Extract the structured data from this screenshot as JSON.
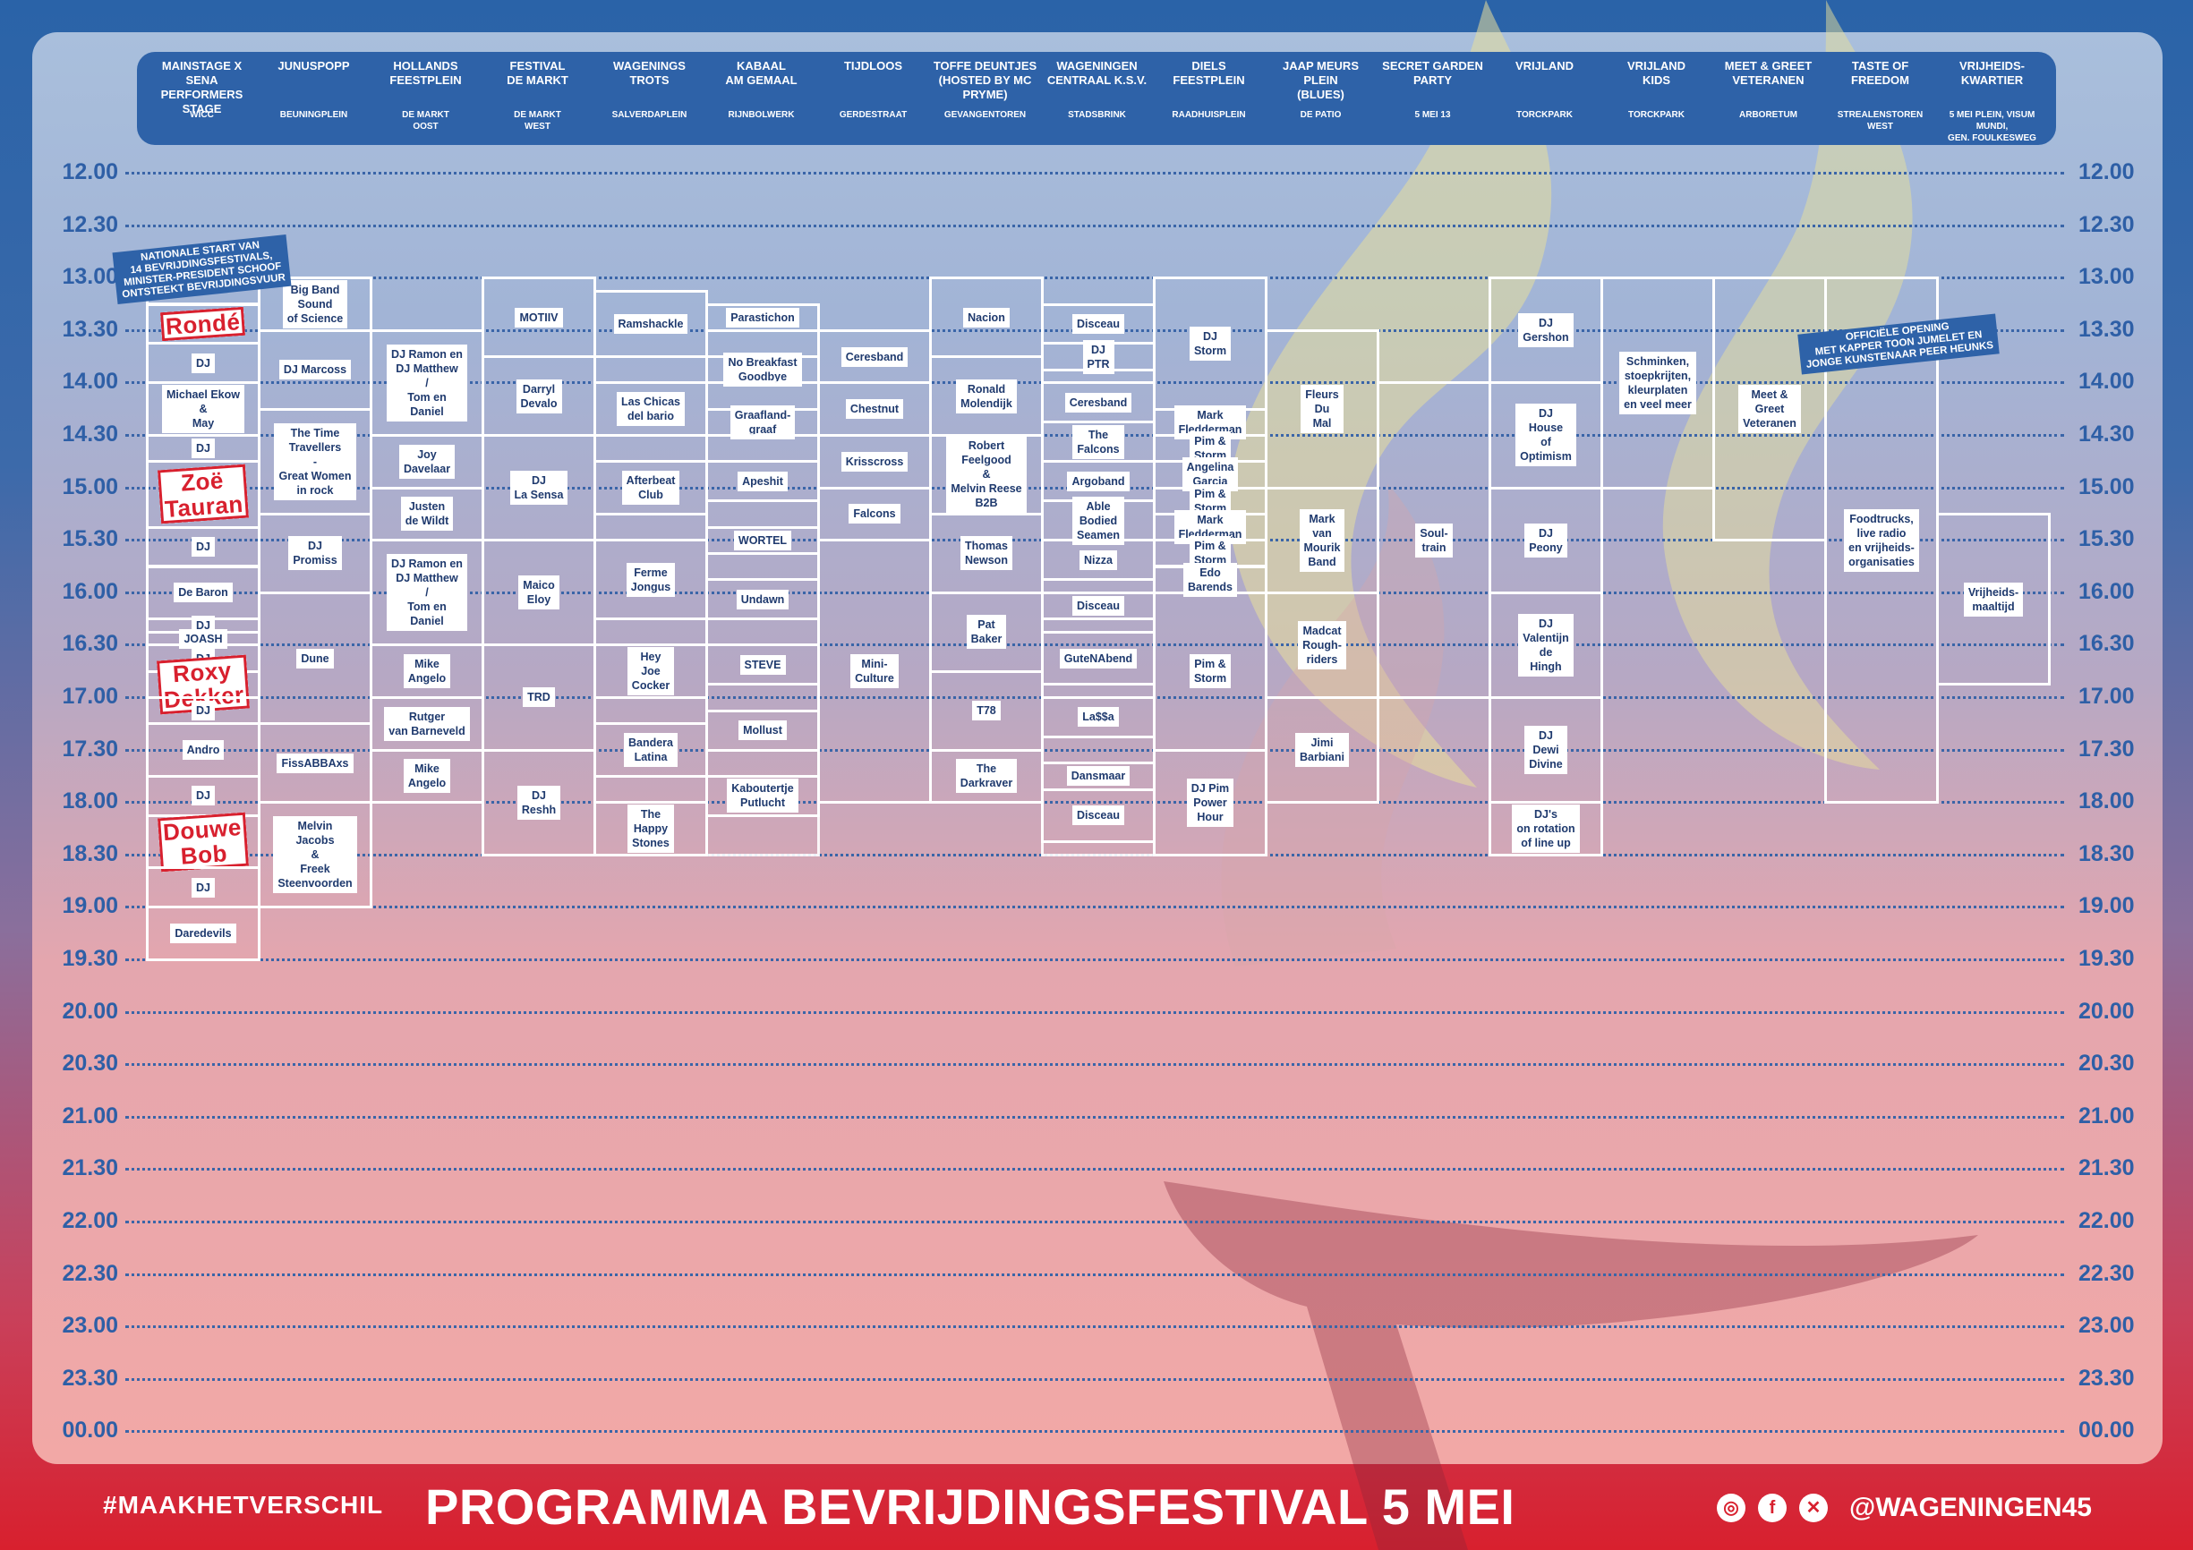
{
  "title": "PROGRAMMA BEVRIJDINGSFESTIVAL 5 MEI",
  "hashtag": "#MAAKHETVERSCHIL",
  "social": {
    "handle": "@WAGENINGEN45",
    "icons": [
      "instagram-icon",
      "facebook-icon",
      "x-icon"
    ]
  },
  "colors": {
    "blue": "#2e62a8",
    "red": "#d8202e",
    "white": "#ffffff"
  },
  "times": [
    "12.00",
    "12.30",
    "13.00",
    "13.30",
    "14.00",
    "14.30",
    "15.00",
    "15.30",
    "16.00",
    "16.30",
    "17.00",
    "17.30",
    "18.00",
    "18.30",
    "19.00",
    "19.30",
    "20.00",
    "20.30",
    "21.00",
    "21.30",
    "22.00",
    "22.30",
    "23.00",
    "23.30",
    "00.00"
  ],
  "stages": [
    {
      "name": "MAINSTAGE X SENA\nPERFORMERS STAGE",
      "location": "WICC",
      "slots": [
        {
          "s": 2,
          "e": 2.5,
          "act": ""
        },
        {
          "s": 2.5,
          "e": 3.25,
          "act": "Rondé",
          "headliner": true
        },
        {
          "s": 3.25,
          "e": 4,
          "act": "DJ"
        },
        {
          "s": 4,
          "e": 5,
          "act": "Michael Ekow\n&\nMay"
        },
        {
          "s": 5,
          "e": 5.5,
          "act": "DJ"
        },
        {
          "s": 5.5,
          "e": 6.75,
          "act": "Zoë\nTauran",
          "headliner": true
        },
        {
          "s": 6.75,
          "e": 7.5,
          "act": "DJ"
        },
        {
          "s": 7.5,
          "e": 8.5,
          "act": "De Baron"
        },
        {
          "s": 8.5,
          "e": 8.75,
          "act": "DJ"
        },
        {
          "s": 8.75,
          "e": 9,
          "act": "JOASH"
        },
        {
          "s": 9,
          "e": 9.5,
          "act": "DJ"
        },
        {
          "s": 9.5,
          "e": 10,
          "act": "Roxy\nDekker",
          "headliner": true
        },
        {
          "s": 10,
          "e": 10.5,
          "act": "DJ"
        },
        {
          "s": 10.5,
          "e": 11.5,
          "act": "Andro"
        },
        {
          "s": 11.5,
          "e": 12.25,
          "act": "DJ"
        },
        {
          "s": 12.25,
          "e": 13.25,
          "act": "Douwe\nBob",
          "headliner": true
        },
        {
          "s": 13.25,
          "e": 14,
          "act": "DJ"
        },
        {
          "s": 14,
          "e": 15,
          "act": "Daredevils"
        }
      ]
    },
    {
      "name": "JUNUSPOPP",
      "location": "BEUNINGPLEIN",
      "slots": [
        {
          "s": 2,
          "e": 3,
          "act": "Big Band\nSound\nof Science"
        },
        {
          "s": 3,
          "e": 4.5,
          "act": "DJ Marcoss"
        },
        {
          "s": 4.5,
          "e": 6.5,
          "act": "The Time\nTravellers\n-\nGreat Women\nin rock"
        },
        {
          "s": 6.5,
          "e": 8,
          "act": "DJ\nPromiss"
        },
        {
          "s": 8,
          "e": 10.5,
          "act": "Dune"
        },
        {
          "s": 10.5,
          "e": 12,
          "act": "FissABBAxs"
        },
        {
          "s": 12,
          "e": 14,
          "act": "Melvin\nJacobs\n&\nFreek\nSteenvoorden"
        }
      ]
    },
    {
      "name": "HOLLANDS\nFEESTPLEIN",
      "location": "DE MARKT\nOOST",
      "slots": [
        {
          "s": 3,
          "e": 5,
          "act": "DJ Ramon en\nDJ Matthew\n/\nTom en\nDaniel"
        },
        {
          "s": 5,
          "e": 6,
          "act": "Joy\nDavelaar"
        },
        {
          "s": 6,
          "e": 7,
          "act": "Justen\nde Wildt"
        },
        {
          "s": 7,
          "e": 9,
          "act": "DJ Ramon en\nDJ Matthew\n/\nTom en\nDaniel"
        },
        {
          "s": 9,
          "e": 10,
          "act": "Mike\nAngelo"
        },
        {
          "s": 10,
          "e": 11,
          "act": "Rutger\nvan Barneveld"
        },
        {
          "s": 11,
          "e": 12,
          "act": "Mike\nAngelo"
        }
      ]
    },
    {
      "name": "FESTIVAL\nDE MARKT",
      "location": "DE MARKT\nWEST",
      "slots": [
        {
          "s": 2,
          "e": 3.5,
          "act": "MOTIIV"
        },
        {
          "s": 3.5,
          "e": 5,
          "act": "Darryl\nDevalo"
        },
        {
          "s": 5,
          "e": 7,
          "act": "DJ\nLa Sensa"
        },
        {
          "s": 7,
          "e": 9,
          "act": "Maico\nEloy"
        },
        {
          "s": 9,
          "e": 11,
          "act": "TRD"
        },
        {
          "s": 11,
          "e": 13,
          "act": "DJ\nReshh"
        }
      ]
    },
    {
      "name": "WAGENINGS\nTROTS",
      "location": "SALVERDAPLEIN",
      "slots": [
        {
          "s": 2.25,
          "e": 3.5,
          "act": "Ramshackle"
        },
        {
          "s": 3.5,
          "e": 4,
          "act": ""
        },
        {
          "s": 4,
          "e": 5,
          "act": "Las Chicas\ndel bario"
        },
        {
          "s": 5,
          "e": 5.5,
          "act": ""
        },
        {
          "s": 5.5,
          "e": 6.5,
          "act": "Afterbeat\nClub"
        },
        {
          "s": 6.5,
          "e": 7,
          "act": ""
        },
        {
          "s": 7,
          "e": 8.5,
          "act": "Ferme\nJongus"
        },
        {
          "s": 8.5,
          "e": 9,
          "act": ""
        },
        {
          "s": 9,
          "e": 10,
          "act": "Hey\nJoe\nCocker"
        },
        {
          "s": 10,
          "e": 10.5,
          "act": ""
        },
        {
          "s": 10.5,
          "e": 11.5,
          "act": "Bandera\nLatina"
        },
        {
          "s": 11.5,
          "e": 12,
          "act": ""
        },
        {
          "s": 12,
          "e": 13,
          "act": "The\nHappy\nStones"
        }
      ]
    },
    {
      "name": "KABAAL\nAM GEMAAL",
      "location": "RIJNBOLWERK",
      "slots": [
        {
          "s": 2.5,
          "e": 3,
          "act": "Parastichon"
        },
        {
          "s": 3,
          "e": 3.5,
          "act": ""
        },
        {
          "s": 3.5,
          "e": 4,
          "act": "No Breakfast\nGoodbye"
        },
        {
          "s": 4,
          "e": 4.5,
          "act": ""
        },
        {
          "s": 4.5,
          "e": 5,
          "act": "Graafland-\ngraaf"
        },
        {
          "s": 5,
          "e": 5.5,
          "act": ""
        },
        {
          "s": 5.5,
          "e": 6.25,
          "act": "Apeshit"
        },
        {
          "s": 6.25,
          "e": 6.75,
          "act": ""
        },
        {
          "s": 6.75,
          "e": 7.25,
          "act": "WORTEL"
        },
        {
          "s": 7.25,
          "e": 7.75,
          "act": ""
        },
        {
          "s": 7.75,
          "e": 8.5,
          "act": "Undawn"
        },
        {
          "s": 8.5,
          "e": 9,
          "act": ""
        },
        {
          "s": 9,
          "e": 9.75,
          "act": "STEVE"
        },
        {
          "s": 9.75,
          "e": 10.25,
          "act": ""
        },
        {
          "s": 10.25,
          "e": 11,
          "act": "Mollust"
        },
        {
          "s": 11,
          "e": 11.5,
          "act": ""
        },
        {
          "s": 11.5,
          "e": 12.25,
          "act": "Kaboutertje\nPutlucht"
        },
        {
          "s": 12.25,
          "e": 13,
          "act": ""
        }
      ]
    },
    {
      "name": "TIJDLOOS",
      "location": "GERDESTRAAT",
      "slots": [
        {
          "s": 3,
          "e": 4,
          "act": "Ceresband"
        },
        {
          "s": 4,
          "e": 5,
          "act": "Chestnut"
        },
        {
          "s": 5,
          "e": 6,
          "act": "Krisscross"
        },
        {
          "s": 6,
          "e": 7,
          "act": "Falcons"
        },
        {
          "s": 7,
          "e": 12,
          "act": "Mini-\nCulture"
        }
      ]
    },
    {
      "name": "TOFFE DEUNTJES\n(HOSTED BY MC PRYME)",
      "location": "GEVANGENTOREN",
      "slots": [
        {
          "s": 2,
          "e": 3.5,
          "act": "Nacion"
        },
        {
          "s": 3.5,
          "e": 5,
          "act": "Ronald\nMolendijk"
        },
        {
          "s": 5,
          "e": 6.5,
          "act": "Robert\nFeelgood\n&\nMelvin Reese\nB2B"
        },
        {
          "s": 6.5,
          "e": 8,
          "act": "Thomas\nNewson"
        },
        {
          "s": 8,
          "e": 9.5,
          "act": "Pat\nBaker"
        },
        {
          "s": 9.5,
          "e": 11,
          "act": "T78"
        },
        {
          "s": 11,
          "e": 12,
          "act": "The\nDarkraver"
        }
      ]
    },
    {
      "name": "WAGENINGEN\nCENTRAAL K.S.V.",
      "location": "STADSBRINK",
      "slots": [
        {
          "s": 2.5,
          "e": 3.25,
          "act": "Disceau"
        },
        {
          "s": 3.25,
          "e": 3.75,
          "act": "DJ\nPTR"
        },
        {
          "s": 3.75,
          "e": 4,
          "act": ""
        },
        {
          "s": 4,
          "e": 4.75,
          "act": "Ceresband"
        },
        {
          "s": 4.75,
          "e": 5.5,
          "act": "The\nFalcons"
        },
        {
          "s": 5.5,
          "e": 6.25,
          "act": "Argoband"
        },
        {
          "s": 6.25,
          "e": 7,
          "act": "Able\nBodied\nSeamen"
        },
        {
          "s": 7,
          "e": 7.75,
          "act": "Nizza"
        },
        {
          "s": 7.75,
          "e": 8,
          "act": ""
        },
        {
          "s": 8,
          "e": 8.5,
          "act": "Disceau"
        },
        {
          "s": 8.5,
          "e": 8.75,
          "act": ""
        },
        {
          "s": 8.75,
          "e": 9.75,
          "act": "GuteNAbend"
        },
        {
          "s": 9.75,
          "e": 10,
          "act": ""
        },
        {
          "s": 10,
          "e": 10.75,
          "act": "La$$a"
        },
        {
          "s": 10.75,
          "e": 11.25,
          "act": ""
        },
        {
          "s": 11.25,
          "e": 11.75,
          "act": "Dansmaar"
        },
        {
          "s": 11.75,
          "e": 12.75,
          "act": "Disceau"
        },
        {
          "s": 12.75,
          "e": 13,
          "act": ""
        }
      ]
    },
    {
      "name": "DIELS\nFEESTPLEIN",
      "location": "RAADHUISPLEIN",
      "slots": [
        {
          "s": 2,
          "e": 4.5,
          "act": "DJ\nStorm"
        },
        {
          "s": 4.5,
          "e": 5,
          "act": "Mark\nFledderman"
        },
        {
          "s": 5,
          "e": 5.5,
          "act": "Pim &\nStorm"
        },
        {
          "s": 5.5,
          "e": 6,
          "act": "Angelina\nGarcia"
        },
        {
          "s": 6,
          "e": 6.5,
          "act": "Pim &\nStorm"
        },
        {
          "s": 6.5,
          "e": 7,
          "act": "Mark\nFledderman"
        },
        {
          "s": 7,
          "e": 7.5,
          "act": "Pim &\nStorm"
        },
        {
          "s": 7.5,
          "e": 8,
          "act": "Edo\nBarends"
        },
        {
          "s": 8,
          "e": 11,
          "act": "Pim &\nStorm"
        },
        {
          "s": 11,
          "e": 13,
          "act": "DJ Pim\nPower\nHour"
        }
      ]
    },
    {
      "name": "JAAP MEURS PLEIN\n(BLUES)",
      "location": "DE PATIO",
      "slots": [
        {
          "s": 3,
          "e": 6,
          "act": "Fleurs\nDu\nMal"
        },
        {
          "s": 6,
          "e": 8,
          "act": "Mark\nvan\nMourik\nBand"
        },
        {
          "s": 8,
          "e": 10,
          "act": "Madcat\nRough-\nriders"
        },
        {
          "s": 10,
          "e": 12,
          "act": "Jimi\nBarbiani"
        }
      ]
    },
    {
      "name": "SECRET GARDEN\nPARTY",
      "location": "5 MEI 13",
      "slots": [
        {
          "s": 4,
          "e": 10,
          "act": "Soul-\ntrain"
        }
      ]
    },
    {
      "name": "VRIJLAND",
      "location": "TORCKPARK",
      "slots": [
        {
          "s": 2,
          "e": 4,
          "act": "DJ\nGershon"
        },
        {
          "s": 4,
          "e": 6,
          "act": "DJ\nHouse\nof\nOptimism"
        },
        {
          "s": 6,
          "e": 8,
          "act": "DJ\nPeony"
        },
        {
          "s": 8,
          "e": 10,
          "act": "DJ\nValentijn\nde\nHingh"
        },
        {
          "s": 10,
          "e": 12,
          "act": "DJ\nDewi\nDivine"
        },
        {
          "s": 12,
          "e": 13,
          "act": "DJ's\non rotation\nof line up"
        }
      ]
    },
    {
      "name": "VRIJLAND\nKIDS",
      "location": "TORCKPARK",
      "slots": [
        {
          "s": 2,
          "e": 6,
          "act": "Schminken,\nstoepkrijten,\nkleurplaten\nen veel meer"
        }
      ]
    },
    {
      "name": "MEET & GREET\nVETERANEN",
      "location": "ARBORETUM",
      "slots": [
        {
          "s": 2,
          "e": 7,
          "act": "Meet &\nGreet\nVeteranen"
        }
      ]
    },
    {
      "name": "TASTE OF\nFREEDOM",
      "location": "STREALENSTOREN\nWEST",
      "slots": [
        {
          "s": 2,
          "e": 12,
          "act": "Foodtrucks,\nlive radio\nen vrijheids-\norganisaties"
        }
      ]
    },
    {
      "name": "VRIJHEIDS-\nKWARTIER",
      "location": "5 MEI PLEIN, VISUM MUNDI,\nGEN. FOULKESWEG",
      "slots": [
        {
          "s": 6.5,
          "e": 9.75,
          "act": "Vrijheids-\nmaaltijd"
        }
      ]
    }
  ],
  "notes": [
    {
      "text": "NATIONALE START VAN\n14 BEVRIJDINGSFESTIVALS,\nMINISTER-PRESIDENT SCHOOF\nONTSTEEKT BEVRIJDINGSVUUR"
    },
    {
      "text": "OFFICIËLE OPENING\nMET KAPPER TOON JUMELET EN\nJONGE KUNSTENAAR PEER HEUNKS"
    }
  ]
}
